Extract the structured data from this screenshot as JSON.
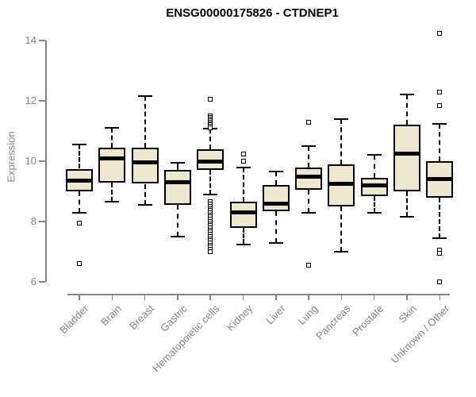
{
  "chart_data": {
    "type": "boxplot",
    "title": "ENSG00000175826 - CTDNEP1",
    "xlabel": "",
    "ylabel": "Expression",
    "ylim": [
      6,
      14.4
    ],
    "yticks": [
      6,
      8,
      10,
      12,
      14
    ],
    "grid": "off",
    "legend": "none",
    "categories": [
      "Bladder",
      "Brain",
      "Breast",
      "Gastric",
      "Hematopoietic cells",
      "Kidney",
      "Liver",
      "Lung",
      "Pancreas",
      "Prostate",
      "Skin",
      "Unknown / Other"
    ],
    "series": [
      {
        "category": "Bladder",
        "whisker_low": 8.3,
        "q1": 9.0,
        "median": 9.35,
        "q3": 9.75,
        "whisker_high": 10.55,
        "outliers": [
          7.95,
          6.6
        ]
      },
      {
        "category": "Brain",
        "whisker_low": 8.65,
        "q1": 9.3,
        "median": 10.1,
        "q3": 10.45,
        "whisker_high": 11.1,
        "outliers": []
      },
      {
        "category": "Breast",
        "whisker_low": 8.55,
        "q1": 9.25,
        "median": 9.95,
        "q3": 10.45,
        "whisker_high": 12.15,
        "outliers": []
      },
      {
        "category": "Gastric",
        "whisker_low": 7.5,
        "q1": 8.55,
        "median": 9.3,
        "q3": 9.7,
        "whisker_high": 9.95,
        "outliers": []
      },
      {
        "category": "Hematopoietic cells",
        "whisker_low": 8.9,
        "q1": 9.7,
        "median": 10.0,
        "q3": 10.4,
        "whisker_high": 11.08,
        "outliers": [
          12.05,
          11.5,
          11.45,
          11.4,
          11.35,
          11.3,
          11.25,
          11.2,
          11.15,
          11.1,
          8.65,
          8.58,
          8.5,
          8.43,
          8.36,
          8.29,
          8.22,
          8.15,
          8.08,
          8.0,
          7.93,
          7.86,
          7.79,
          7.72,
          7.65,
          7.57,
          7.5,
          7.43,
          7.36,
          7.29,
          7.22,
          7.15,
          7.08,
          7.0
        ]
      },
      {
        "category": "Kidney",
        "whisker_low": 7.25,
        "q1": 7.8,
        "median": 8.3,
        "q3": 8.65,
        "whisker_high": 9.8,
        "outliers": [
          10.25,
          10.0
        ]
      },
      {
        "category": "Liver",
        "whisker_low": 7.3,
        "q1": 8.35,
        "median": 8.6,
        "q3": 9.2,
        "whisker_high": 9.65,
        "outliers": []
      },
      {
        "category": "Lung",
        "whisker_low": 8.3,
        "q1": 9.05,
        "median": 9.5,
        "q3": 9.8,
        "whisker_high": 10.5,
        "outliers": [
          11.3,
          6.55
        ]
      },
      {
        "category": "Pancreas",
        "whisker_low": 7.0,
        "q1": 8.5,
        "median": 9.25,
        "q3": 9.9,
        "whisker_high": 11.4,
        "outliers": []
      },
      {
        "category": "Prostate",
        "whisker_low": 8.3,
        "q1": 8.85,
        "median": 9.2,
        "q3": 9.45,
        "whisker_high": 10.2,
        "outliers": []
      },
      {
        "category": "Skin",
        "whisker_low": 8.15,
        "q1": 9.0,
        "median": 10.25,
        "q3": 11.2,
        "whisker_high": 12.2,
        "outliers": []
      },
      {
        "category": "Unknown / Other",
        "whisker_low": 7.45,
        "q1": 8.8,
        "median": 9.4,
        "q3": 10.0,
        "whisker_high": 11.25,
        "outliers": [
          14.25,
          12.3,
          11.85,
          7.05,
          6.95,
          6.0
        ]
      }
    ],
    "colors": {
      "box_fill": "#eee8ce",
      "box_border": "#000000",
      "median": "#000000",
      "axis": "#848484",
      "tick_label": "#848484",
      "title": "#000000",
      "background": "#ffffff"
    }
  }
}
